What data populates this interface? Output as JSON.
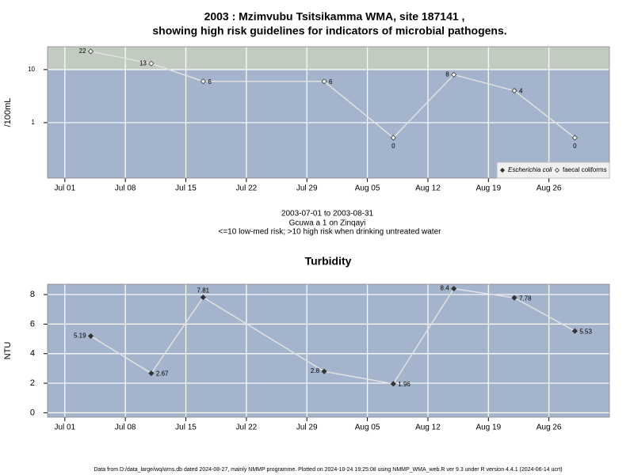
{
  "chart_data": [
    {
      "type": "line",
      "title": [
        "2003 : Mzimvubu Tsitsikamma WMA, site 187141 ,",
        "showing high risk guidelines for indicators of microbial pathogens."
      ],
      "ylabel": "/100mL",
      "yscale": "log",
      "x": [
        "2003-07-04",
        "2003-07-11",
        "2003-07-17",
        "2003-07-31",
        "2003-08-08",
        "2003-08-15",
        "2003-08-22",
        "2003-08-29"
      ],
      "xlim": [
        "2003-06-29",
        "2003-09-02"
      ],
      "xticks": [
        {
          "value": "2003-07-01",
          "label": "Jul 01"
        },
        {
          "value": "2003-07-08",
          "label": "Jul 08"
        },
        {
          "value": "2003-07-15",
          "label": "Jul 15"
        },
        {
          "value": "2003-07-22",
          "label": "Jul 22"
        },
        {
          "value": "2003-07-29",
          "label": "Jul 29"
        },
        {
          "value": "2003-08-05",
          "label": "Aug 05"
        },
        {
          "value": "2003-08-12",
          "label": "Aug 12"
        },
        {
          "value": "2003-08-19",
          "label": "Aug 19"
        },
        {
          "value": "2003-08-26",
          "label": "Aug 26"
        }
      ],
      "ylim": [
        0.09,
        27
      ],
      "yticks": [
        1,
        10
      ],
      "grid": true,
      "risk_threshold": 10,
      "plot_color": "#a3b4cc",
      "risk_color": "#c2cbc0",
      "legend": "bottom-right",
      "series": [
        {
          "name": "Escherichia coli",
          "color": "#333333",
          "values": [
            null,
            null,
            null,
            null,
            null,
            null,
            null,
            null
          ]
        },
        {
          "name": "faecal coliforms",
          "color": "#ffffff",
          "values": [
            22,
            13,
            6,
            6,
            0,
            8,
            4,
            0
          ]
        }
      ],
      "annotations": [
        "2003-07-01 to 2003-08-31",
        "Gcuwa a 1 on Zinqayi",
        "<=10 low-med risk; >10 high risk when drinking untreated water"
      ]
    },
    {
      "type": "line",
      "title": "Turbidity",
      "ylabel": "NTU",
      "yscale": "linear",
      "x": [
        "2003-07-04",
        "2003-07-11",
        "2003-07-17",
        "2003-07-31",
        "2003-08-08",
        "2003-08-15",
        "2003-08-22",
        "2003-08-29"
      ],
      "xlim": [
        "2003-06-29",
        "2003-09-02"
      ],
      "xticks": [
        {
          "value": "2003-07-01",
          "label": "Jul 01"
        },
        {
          "value": "2003-07-08",
          "label": "Jul 08"
        },
        {
          "value": "2003-07-15",
          "label": "Jul 15"
        },
        {
          "value": "2003-07-22",
          "label": "Jul 22"
        },
        {
          "value": "2003-07-29",
          "label": "Jul 29"
        },
        {
          "value": "2003-08-05",
          "label": "Aug 05"
        },
        {
          "value": "2003-08-12",
          "label": "Aug 12"
        },
        {
          "value": "2003-08-19",
          "label": "Aug 19"
        },
        {
          "value": "2003-08-26",
          "label": "Aug 26"
        }
      ],
      "ylim": [
        -0.3,
        8.7
      ],
      "yticks": [
        0,
        2,
        4,
        6,
        8
      ],
      "grid": true,
      "plot_color": "#a3b4cc",
      "series": [
        {
          "name": "Turbidity",
          "color": "#333333",
          "values": [
            5.19,
            2.67,
            7.81,
            2.8,
            1.96,
            8.4,
            7.78,
            5.53
          ]
        }
      ]
    }
  ],
  "footer": "Data from D:/data_large/wq/wms.db dated 2024-08-27, mainly NMMP programme. Plotted on 2024-10-24 19:25:08 using NMMP_WMA_web.R ver 9.3 under R version 4.4.1 (2024-06-14 ucrt)"
}
